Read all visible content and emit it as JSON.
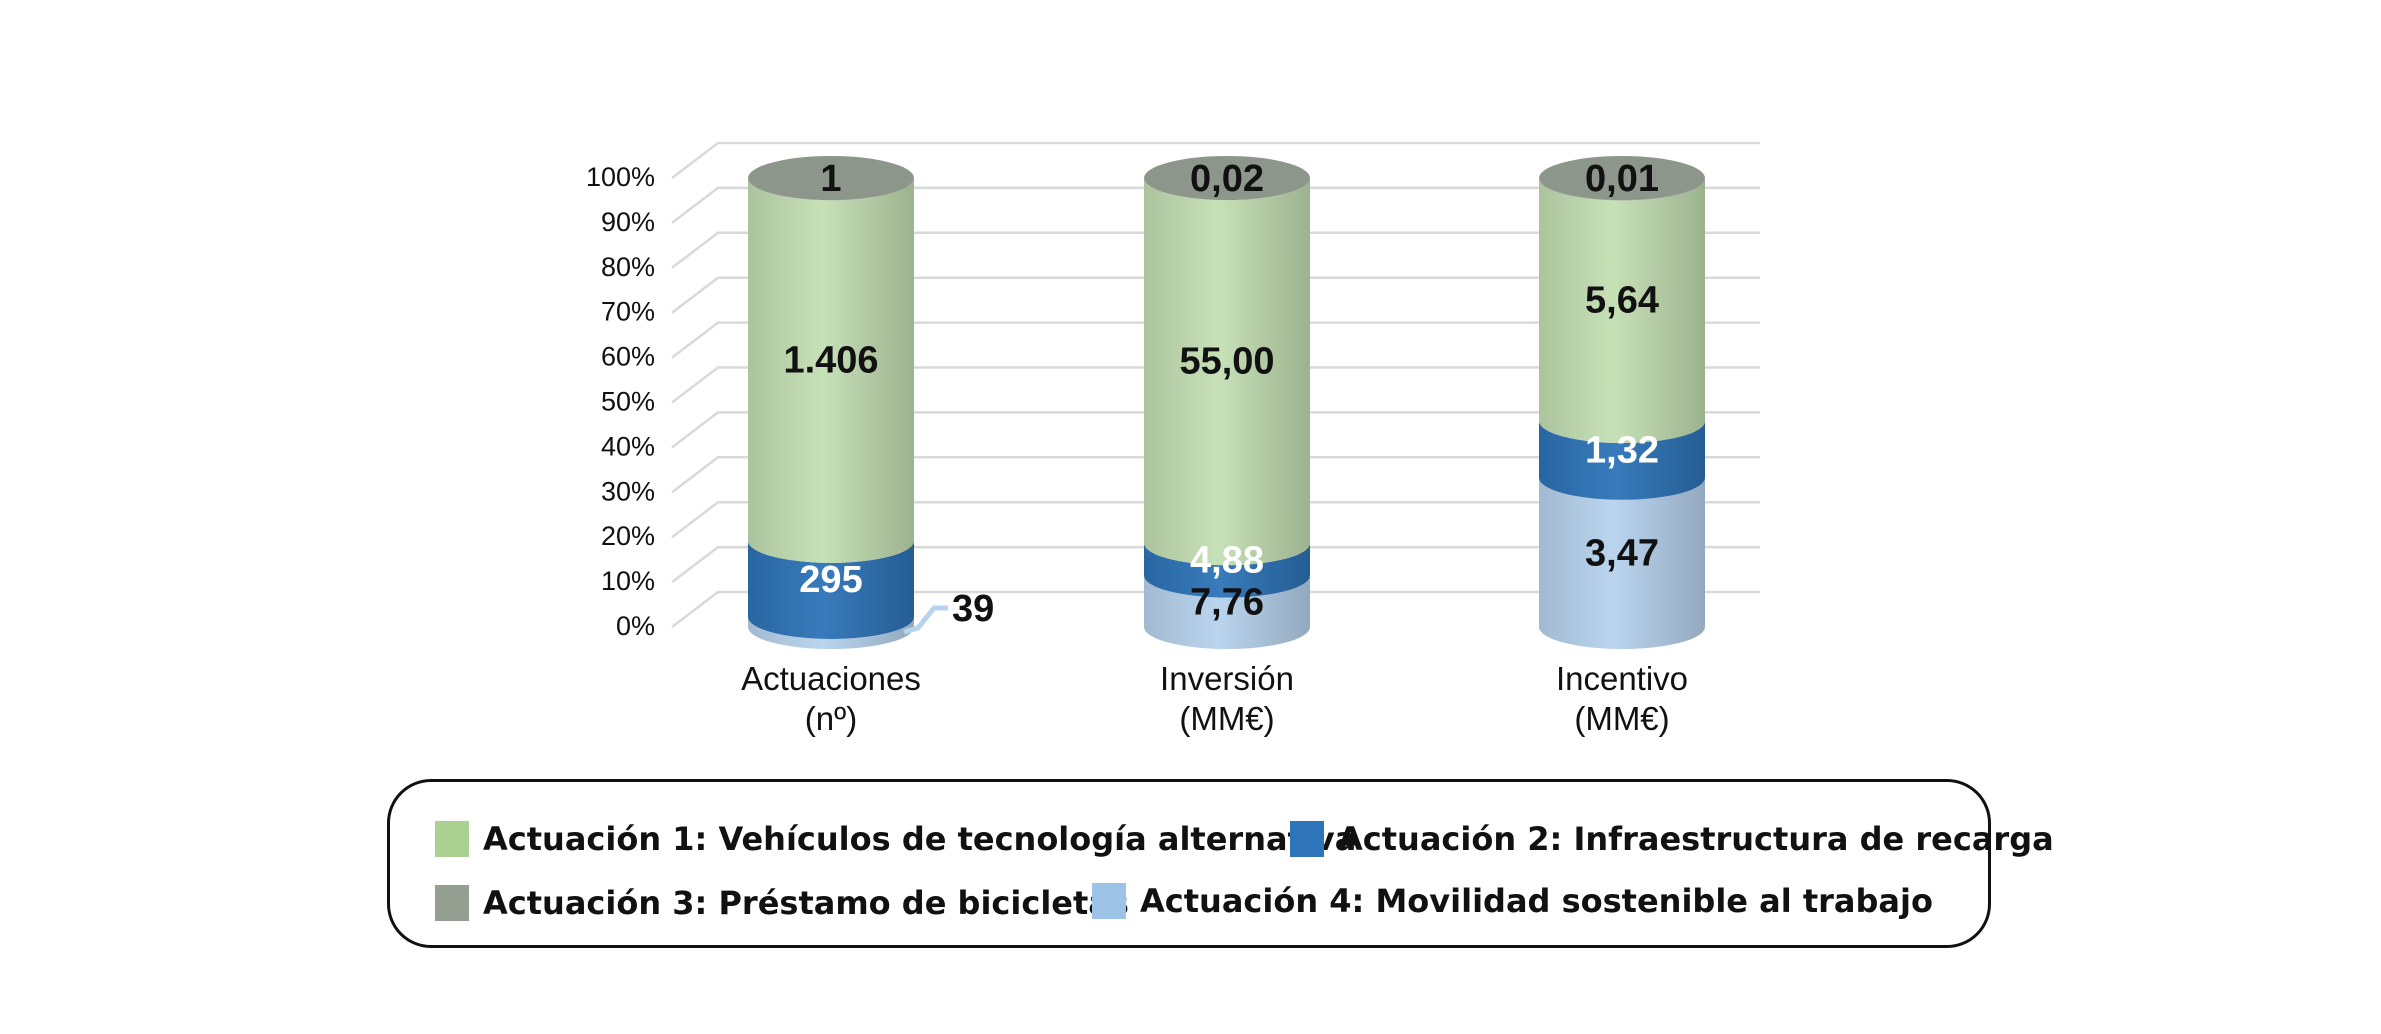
{
  "chart_data": {
    "type": "bar",
    "stacked": true,
    "normalized": true,
    "shape": "cylinder",
    "title": "",
    "categories": [
      {
        "label": "Actuaciones",
        "unit": "(nº)"
      },
      {
        "label": "Inversión",
        "unit": "(MM€)"
      },
      {
        "label": "Incentivo",
        "unit": "(MM€)"
      }
    ],
    "y_ticks": [
      "0%",
      "10%",
      "20%",
      "30%",
      "40%",
      "50%",
      "60%",
      "70%",
      "80%",
      "90%",
      "100%"
    ],
    "ylim": [
      0,
      100
    ],
    "grid": true,
    "legend_position": "bottom",
    "series": [
      {
        "name": "Actuación 4: Movilidad sostenible al trabajo",
        "color": "#b7d3ee",
        "values": [
          39,
          7.76,
          3.47
        ],
        "labels": [
          "39",
          "7,76",
          "3,47"
        ]
      },
      {
        "name": "Actuación 2: Infraestructura de recarga",
        "color": "#2e74b8",
        "values": [
          295,
          4.88,
          1.32
        ],
        "labels": [
          "295",
          "4,88",
          "1,32"
        ]
      },
      {
        "name": "Actuación 1: Vehículos de tecnología alternativa",
        "color": "#c4dfb3",
        "values": [
          1406,
          55.0,
          5.64
        ],
        "labels": [
          "1.406",
          "55,00",
          "5,64"
        ]
      },
      {
        "name": "Actuación 3: Préstamo de bicicletas",
        "color": "#949e91",
        "values": [
          1,
          0.02,
          0.01
        ],
        "labels": [
          "1",
          "0,02",
          "0,01"
        ]
      }
    ]
  },
  "legend": {
    "items": [
      {
        "label": "Actuación 1: Vehículos de tecnología alternativa",
        "color": "#abd08f"
      },
      {
        "label": "Actuación 2: Infraestructura de recarga",
        "color": "#2e74b8"
      },
      {
        "label": "Actuación 3: Préstamo de bicicletas",
        "color": "#949e91"
      },
      {
        "label": "Actuación 4: Movilidad sostenible al trabajo",
        "color": "#9dc3e6"
      }
    ]
  }
}
